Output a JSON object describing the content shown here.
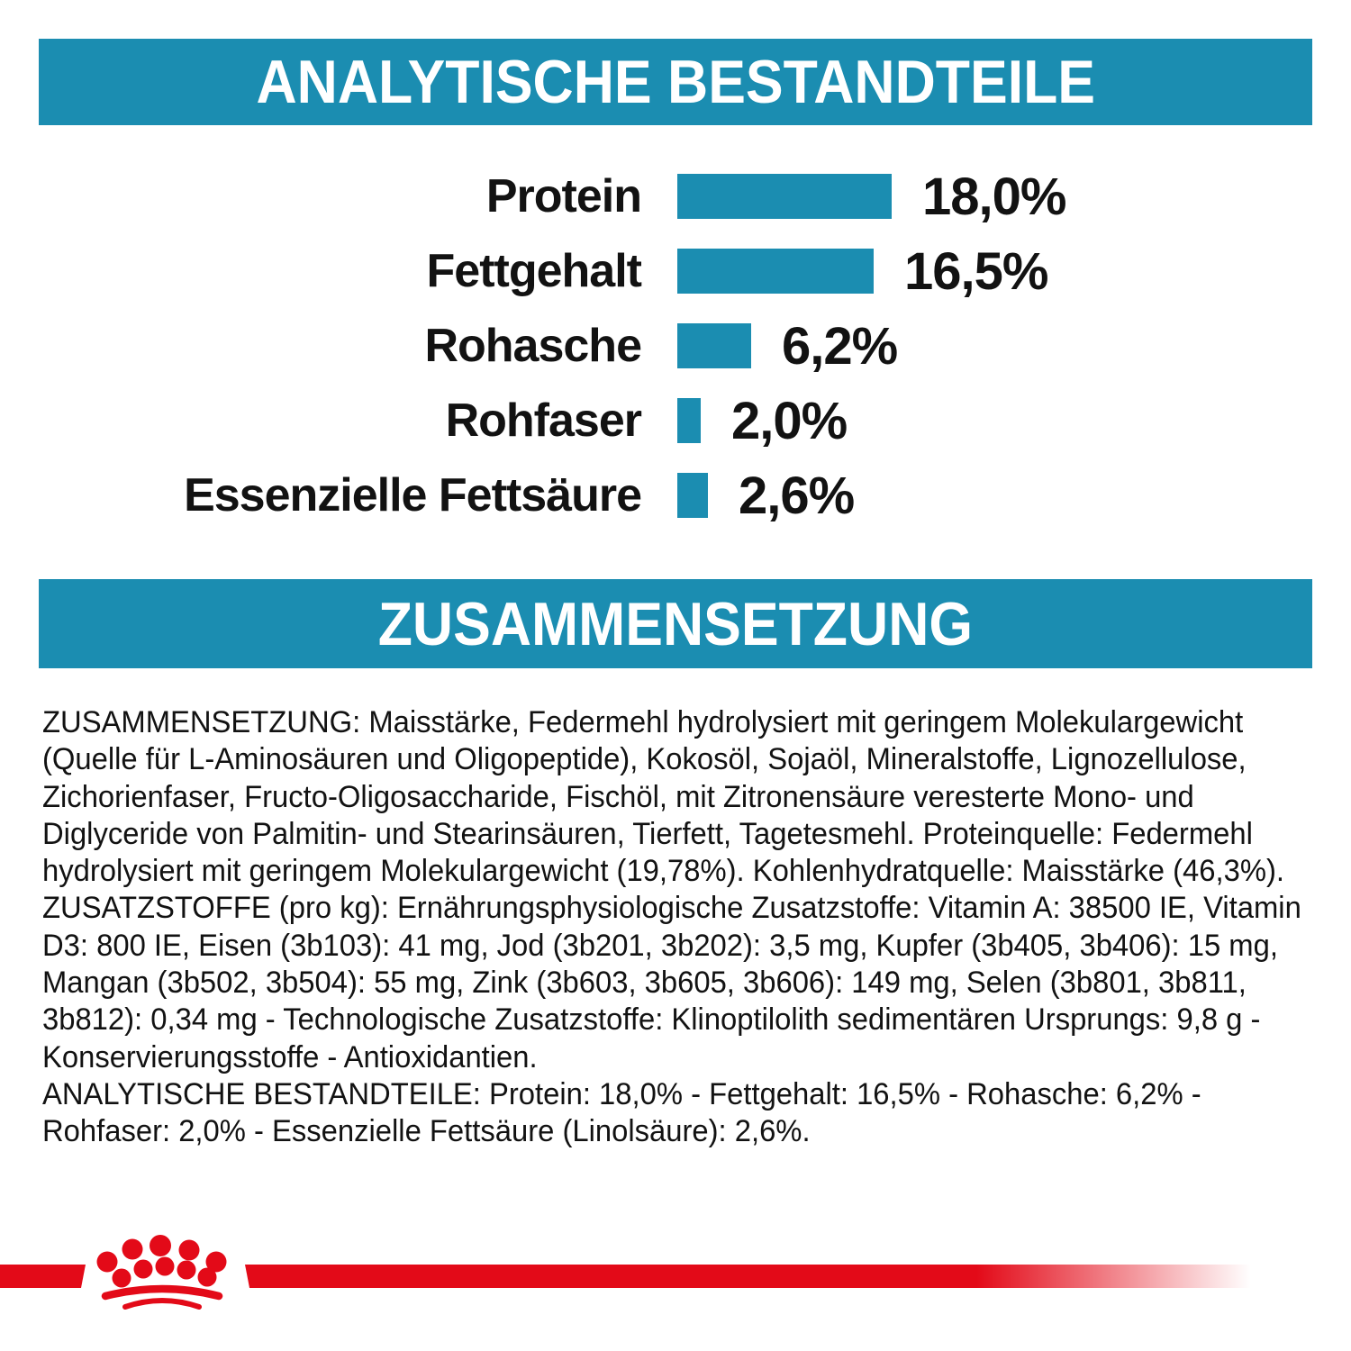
{
  "colors": {
    "teal": "#1b8db1",
    "red": "#e30a18",
    "text": "#121212",
    "header_text": "#ffffff",
    "background": "#ffffff"
  },
  "sections": {
    "analytical_title": "ANALYTISCHE BESTANDTEILE",
    "composition_title": "ZUSAMMENSETZUNG"
  },
  "chart_data": {
    "type": "bar",
    "orientation": "horizontal",
    "title": "ANALYTISCHE BESTANDTEILE",
    "categories": [
      "Protein",
      "Fettgehalt",
      "Rohasche",
      "Rohfaser",
      "Essenzielle Fettsäure"
    ],
    "values": [
      18.0,
      16.5,
      6.2,
      2.0,
      2.6
    ],
    "value_labels": [
      "18,0%",
      "16,5%",
      "6,2%",
      "2,0%",
      "2,6%"
    ],
    "unit": "%",
    "bar_color": "#1b8db1",
    "xlim": [
      0,
      20
    ],
    "grid": false,
    "legend_position": "none"
  },
  "composition": {
    "lines": [
      "ZUSAMMENSETZUNG: Maisstärke, Federmehl hydrolysiert mit geringem Molekulargewicht",
      "(Quelle für L-Aminosäuren und Oligopeptide), Kokosöl, Sojaöl, Mineralstoffe, Lignozellulose,",
      "Zichorienfaser, Fructo-Oligosaccharide, Fischöl, mit Zitronensäure veresterte Mono- und",
      "Diglyceride von Palmitin- und Stearinsäuren, Tierfett, Tagetesmehl. Proteinquelle: Federmehl",
      "hydrolysiert mit geringem Molekulargewicht (19,78%). Kohlenhydratquelle: Maisstärke (46,3%).",
      "ZUSATZSTOFFE (pro kg): Ernährungsphysiologische Zusatzstoffe: Vitamin A: 38500 IE, Vitamin",
      "D3: 800 IE, Eisen (3b103): 41 mg, Jod (3b201, 3b202): 3,5 mg, Kupfer (3b405, 3b406): 15 mg,",
      "Mangan (3b502, 3b504): 55 mg, Zink (3b603, 3b605, 3b606): 149 mg, Selen (3b801, 3b811,",
      "3b812): 0,34 mg - Technologische Zusatzstoffe: Klinoptilolith sedimentären Ursprungs: 9,8 g -",
      "Konservierungsstoffe - Antioxidantien.",
      "ANALYTISCHE BESTANDTEILE: Protein: 18,0% - Fettgehalt: 16,5% - Rohasche: 6,2% -",
      "Rohfaser: 2,0% - Essenzielle Fettsäure (Linolsäure): 2,6%."
    ]
  },
  "footer": {
    "logo": "royal-canin-crown"
  }
}
